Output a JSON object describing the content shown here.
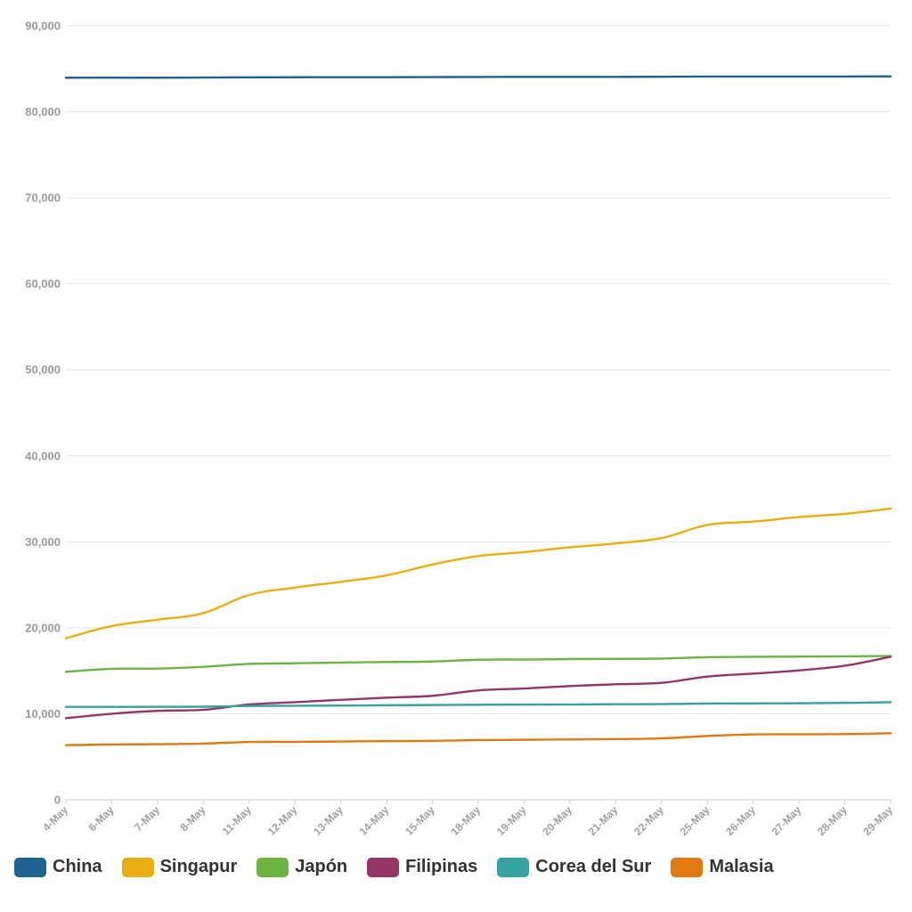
{
  "chart_data": {
    "type": "line",
    "title": "",
    "xlabel": "",
    "ylabel": "",
    "categories": [
      "4-May",
      "6-May",
      "7-May",
      "8-May",
      "11-May",
      "12-May",
      "13-May",
      "14-May",
      "15-May",
      "18-May",
      "19-May",
      "20-May",
      "21-May",
      "22-May",
      "25-May",
      "26-May",
      "27-May",
      "28-May",
      "29-May"
    ],
    "ylim": [
      0,
      90000
    ],
    "yticks": [
      0,
      10000,
      20000,
      30000,
      40000,
      50000,
      60000,
      70000,
      80000,
      90000
    ],
    "ytick_labels": [
      "0",
      "10,000",
      "20,000",
      "30,000",
      "40,000",
      "50,000",
      "60,000",
      "70,000",
      "80,000",
      "90,000"
    ],
    "grid": true,
    "legend_position": "bottom",
    "series": [
      {
        "name": "China",
        "color": "#1f6391",
        "values": [
          83966,
          83970,
          83968,
          83990,
          84011,
          84018,
          84024,
          84029,
          84038,
          84054,
          84063,
          84063,
          84063,
          84081,
          84102,
          84103,
          84106,
          84106,
          84123
        ]
      },
      {
        "name": "Singapur",
        "color": "#e8ae12",
        "values": [
          18778,
          20198,
          20939,
          21707,
          23822,
          24671,
          25346,
          26098,
          27356,
          28343,
          28794,
          29364,
          29812,
          30426,
          31960,
          32343,
          32876,
          33249,
          33860
        ]
      },
      {
        "name": "Japón",
        "color": "#6db33f",
        "values": [
          14877,
          15231,
          15253,
          15463,
          15798,
          15874,
          15953,
          16024,
          16079,
          16285,
          16305,
          16367,
          16385,
          16424,
          16581,
          16623,
          16651,
          16683,
          16719
        ]
      },
      {
        "name": "Filipinas",
        "color": "#943469",
        "values": [
          9485,
          10004,
          10343,
          10463,
          11086,
          11350,
          11618,
          11876,
          12091,
          12718,
          12942,
          13221,
          13434,
          13597,
          14319,
          14669,
          15049,
          15588,
          16634
        ]
      },
      {
        "name": "Corea del Sur",
        "color": "#35a39e",
        "values": [
          10801,
          10806,
          10810,
          10822,
          10909,
          10936,
          10962,
          10991,
          11018,
          11050,
          11065,
          11078,
          11110,
          11122,
          11190,
          11206,
          11225,
          11265,
          11344
        ]
      },
      {
        "name": "Malasia",
        "color": "#e07a10",
        "values": [
          6353,
          6428,
          6467,
          6535,
          6726,
          6742,
          6779,
          6819,
          6855,
          6941,
          6978,
          7009,
          7059,
          7137,
          7417,
          7604,
          7619,
          7629,
          7732
        ]
      }
    ]
  },
  "legend": {
    "items": [
      {
        "label": "China",
        "color": "#1f6391"
      },
      {
        "label": "Singapur",
        "color": "#e8ae12"
      },
      {
        "label": "Japón",
        "color": "#6db33f"
      },
      {
        "label": "Filipinas",
        "color": "#943469"
      },
      {
        "label": "Corea del Sur",
        "color": "#35a39e"
      },
      {
        "label": "Malasia",
        "color": "#e07a10"
      }
    ]
  }
}
